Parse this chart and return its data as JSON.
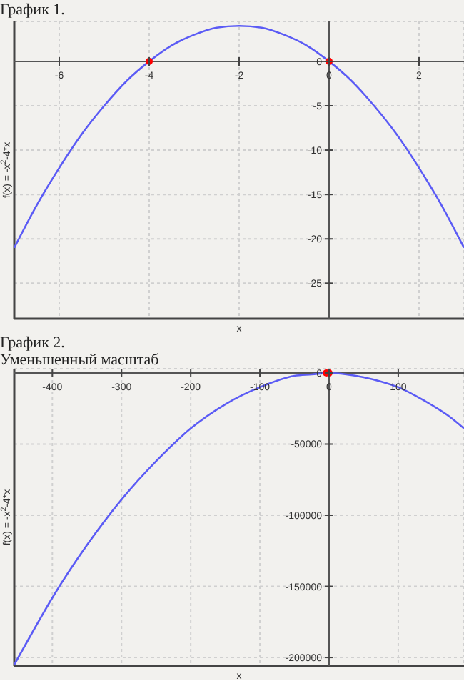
{
  "chart_data": [
    {
      "type": "line",
      "title": "График 1.",
      "xlabel": "x",
      "ylabel": "f(x) = -x$^{2}$-4*x",
      "xlim": [
        -7,
        3
      ],
      "ylim": [
        -29,
        4.5
      ],
      "xticks": [
        -6,
        -4,
        -2,
        0,
        2
      ],
      "yticks": [
        -25,
        -20,
        -15,
        -10,
        -5,
        0
      ],
      "grid": true,
      "series": [
        {
          "type": "line",
          "color": "#5b5bf5",
          "marker": "none",
          "x": [
            -7,
            -6.5,
            -6,
            -5.5,
            -5,
            -4.5,
            -4,
            -3.5,
            -3,
            -2.5,
            -2,
            -1.5,
            -1,
            -0.5,
            0,
            0.5,
            1,
            1.5,
            2,
            2.5,
            3
          ],
          "values": [
            -21,
            -16.2,
            -12,
            -8.2,
            -5,
            -2.2,
            0,
            1.8,
            3,
            3.8,
            4,
            3.8,
            3,
            1.8,
            0,
            -2.2,
            -5,
            -8.2,
            -12,
            -16.2,
            -21
          ]
        },
        {
          "type": "scatter",
          "color": "#ff0000",
          "marker": "circle",
          "x": [
            -4,
            0
          ],
          "values": [
            0,
            0
          ]
        }
      ]
    },
    {
      "type": "line",
      "title": "График 2.",
      "subtitle": "Уменьшенный масштаб",
      "xlabel": "x",
      "ylabel": "f(x) = -x$^{2}$-4*x",
      "xlim": [
        -455,
        195
      ],
      "ylim": [
        -206000,
        3000
      ],
      "xticks": [
        -400,
        -300,
        -200,
        -100,
        0,
        100
      ],
      "yticks": [
        -200000,
        -150000,
        -100000,
        -50000,
        0
      ],
      "grid": true,
      "series": [
        {
          "type": "line",
          "color": "#5b5bf5",
          "marker": "none",
          "x": [
            -455,
            -425,
            -400,
            -350,
            -300,
            -250,
            -200,
            -150,
            -100,
            -50,
            -25,
            0,
            25,
            50,
            75,
            100,
            125,
            150,
            175,
            195
          ],
          "values": [
            -205000,
            -179000,
            -158000,
            -121000,
            -89000,
            -62000,
            -39000,
            -22000,
            -10000,
            -2000,
            -1000,
            0,
            -1000,
            -3000,
            -6000,
            -10000,
            -16000,
            -23000,
            -31000,
            -39000
          ]
        },
        {
          "type": "scatter",
          "color": "#ff0000",
          "marker": "circle",
          "x": [
            -4,
            0
          ],
          "values": [
            0,
            0
          ]
        }
      ]
    }
  ]
}
